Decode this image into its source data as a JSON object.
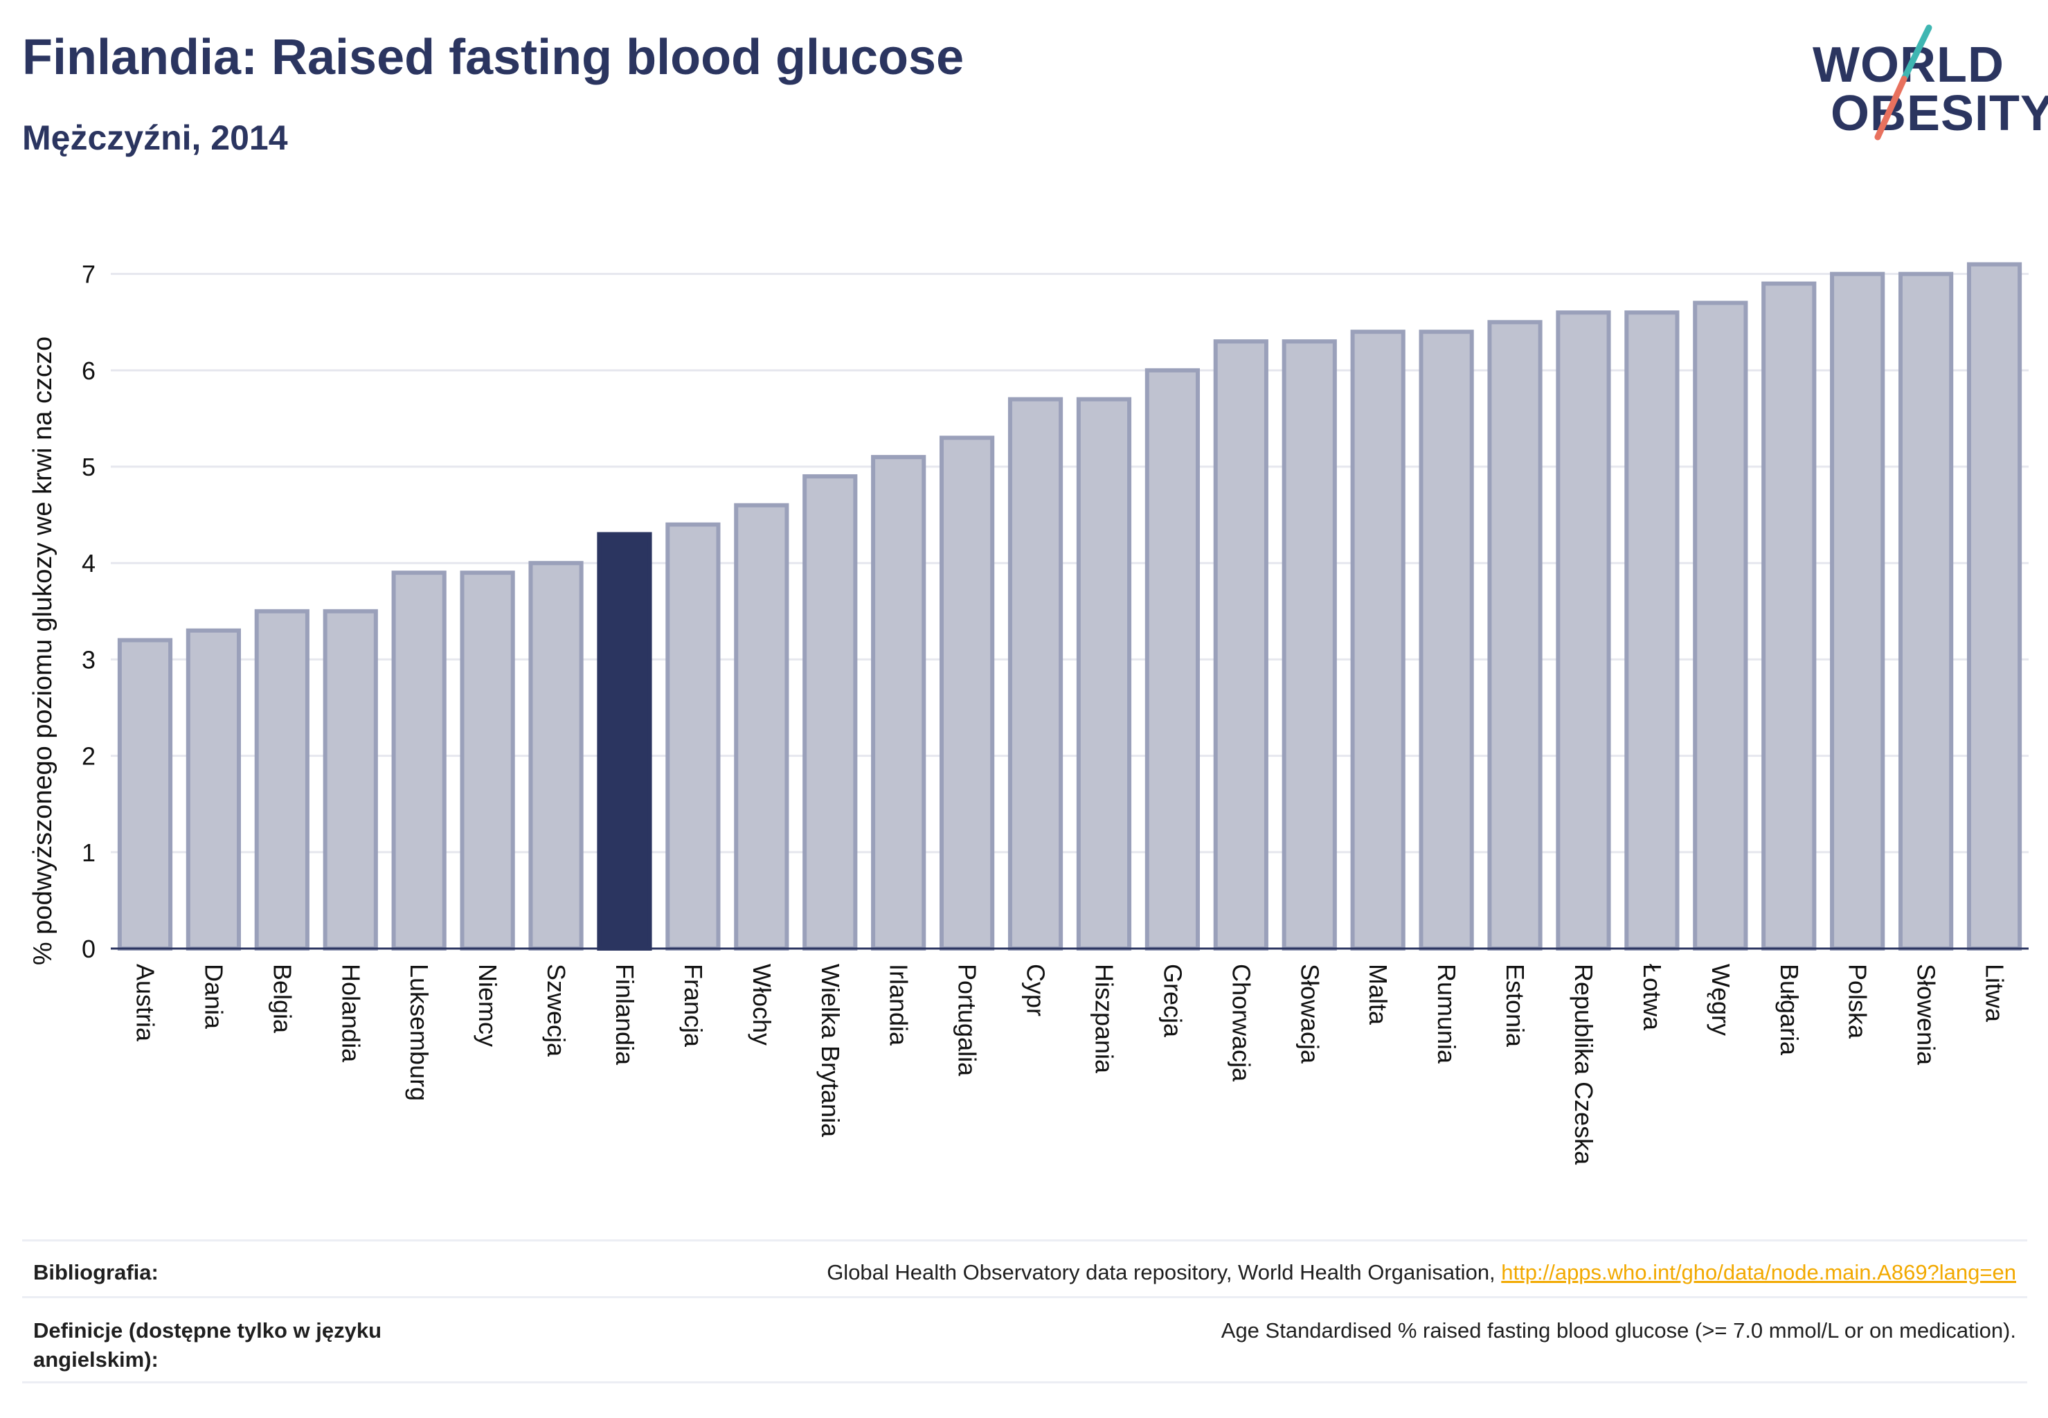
{
  "header": {
    "title": "Finlandia: Raised fasting blood glucose",
    "subtitle": "Mężczyźni, 2014"
  },
  "logo": {
    "line1": "WORLD",
    "line2": "OBESITY",
    "colors": {
      "navy": "#2b3560",
      "teal": "#3fb6b2",
      "coral": "#e8715e"
    }
  },
  "colors": {
    "bar": "#bfc2d0",
    "bar_border": "#9aa0ba",
    "highlight": "#2b3560",
    "grid": "#e6e7ee",
    "axis": "#2b3560"
  },
  "chart_data": {
    "type": "bar",
    "title": "Finlandia: Raised fasting blood glucose",
    "subtitle": "Mężczyźni, 2014",
    "xlabel": "",
    "ylabel": "% podwyższonego poziomu glukozy we krwi na czczo",
    "ylim": [
      0,
      7.4
    ],
    "yticks": [
      0,
      1,
      2,
      3,
      4,
      5,
      6,
      7
    ],
    "grid": true,
    "highlight": "Finlandia",
    "categories": [
      "Austria",
      "Dania",
      "Belgia",
      "Holandia",
      "Luksemburg",
      "Niemcy",
      "Szwecja",
      "Finlandia",
      "Francja",
      "Włochy",
      "Wielka Brytania",
      "Irlandia",
      "Portugalia",
      "Cypr",
      "Hiszpania",
      "Grecja",
      "Chorwacja",
      "Słowacja",
      "Malta",
      "Rumunia",
      "Estonia",
      "Republika Czeska",
      "Łotwa",
      "Węgry",
      "Bułgaria",
      "Polska",
      "Słowenia",
      "Litwa"
    ],
    "values": [
      3.2,
      3.3,
      3.5,
      3.5,
      3.9,
      3.9,
      4.0,
      4.3,
      4.4,
      4.6,
      4.9,
      5.1,
      5.3,
      5.7,
      5.7,
      6.0,
      6.3,
      6.3,
      6.4,
      6.4,
      6.5,
      6.6,
      6.6,
      6.7,
      6.9,
      7.0,
      7.0,
      7.1
    ]
  },
  "footer": {
    "bibliography_label": "Bibliografia:",
    "bibliography_text": "Global Health Observatory data repository, World Health Organisation, ",
    "bibliography_link": "http://apps.who.int/gho/data/node.main.A869?lang=en",
    "definitions_label": "Definicje (dostępne tylko w języku angielskim):",
    "definitions_text": "Age Standardised % raised fasting blood glucose (>= 7.0 mmol/L or on medication)."
  }
}
